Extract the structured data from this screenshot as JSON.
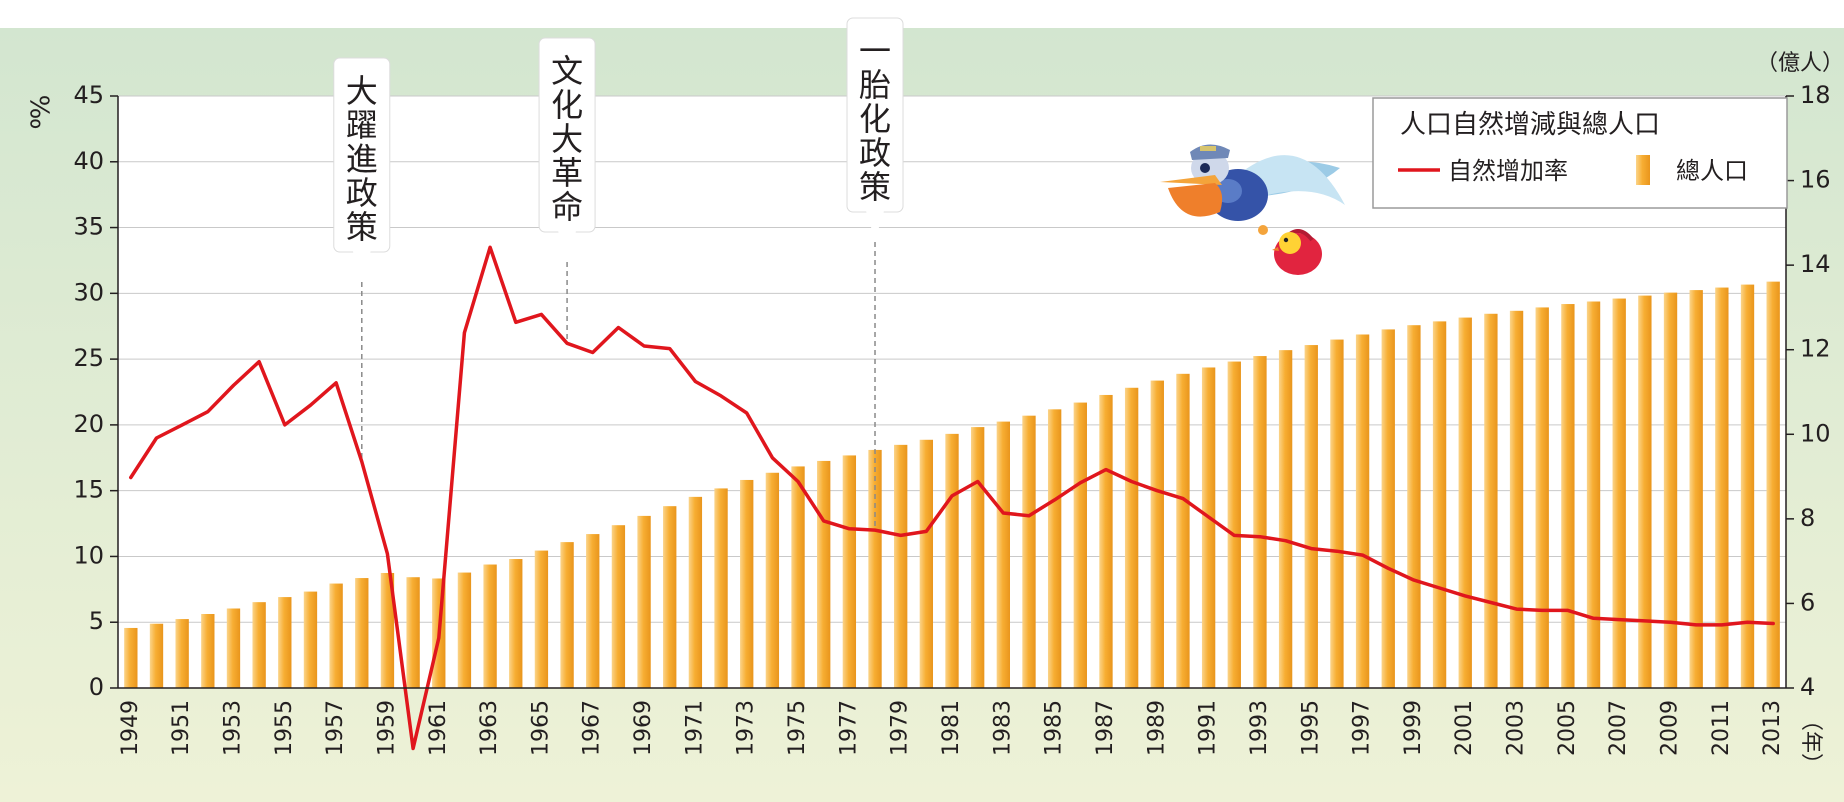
{
  "colors": {
    "band_top": "#d3e6d0",
    "band_bottom": "#eef2d7",
    "bar_fill": "#f7ae33",
    "line_color": "#e0161d",
    "grid": "#c9c9c9",
    "callout_line": "#8a8a8a"
  },
  "chart_data": {
    "type": "bar+line",
    "title": "人口自然增減與總人口",
    "left_axis": {
      "unit_label": "‰",
      "min": 0,
      "max": 45,
      "ticks": [
        0,
        5,
        10,
        15,
        20,
        25,
        30,
        35,
        40,
        45
      ]
    },
    "right_axis": {
      "unit_label": "（億人）",
      "min": 4,
      "max": 18,
      "ticks": [
        4,
        6,
        8,
        10,
        12,
        14,
        16,
        18
      ]
    },
    "x_axis": {
      "unit_label": "（年）"
    },
    "grid": true,
    "legend": {
      "position": "top-right",
      "title": "人口自然增減與總人口",
      "line_label": "自然增加率",
      "bar_label": "總人口"
    },
    "years": [
      1949,
      1950,
      1951,
      1952,
      1953,
      1954,
      1955,
      1956,
      1957,
      1958,
      1959,
      1960,
      1961,
      1962,
      1963,
      1964,
      1965,
      1966,
      1967,
      1968,
      1969,
      1970,
      1971,
      1972,
      1973,
      1974,
      1975,
      1976,
      1977,
      1978,
      1979,
      1980,
      1981,
      1982,
      1983,
      1984,
      1985,
      1986,
      1987,
      1988,
      1989,
      1990,
      1991,
      1992,
      1993,
      1994,
      1995,
      1996,
      1997,
      1998,
      1999,
      2000,
      2001,
      2002,
      2003,
      2004,
      2005,
      2006,
      2007,
      2008,
      2009,
      2010,
      2011,
      2012,
      2013
    ],
    "x_tick_labels": [
      "1949",
      "1951",
      "1953",
      "1955",
      "1957",
      "1959",
      "1961",
      "1963",
      "1965",
      "1967",
      "1969",
      "1971",
      "1973",
      "1975",
      "1977",
      "1979",
      "1981",
      "1983",
      "1985",
      "1987",
      "1989",
      "1991",
      "1993",
      "1995",
      "1997",
      "1999",
      "2001",
      "2003",
      "2005",
      "2007",
      "2009",
      "2011",
      "2013"
    ],
    "series": [
      {
        "name": "總人口",
        "type": "bar",
        "axis": "right",
        "values": [
          5.42,
          5.52,
          5.63,
          5.75,
          5.88,
          6.03,
          6.15,
          6.28,
          6.47,
          6.6,
          6.72,
          6.62,
          6.59,
          6.73,
          6.92,
          7.05,
          7.25,
          7.45,
          7.64,
          7.85,
          8.07,
          8.3,
          8.52,
          8.72,
          8.92,
          9.09,
          9.24,
          9.37,
          9.5,
          9.63,
          9.75,
          9.87,
          10.01,
          10.17,
          10.3,
          10.44,
          10.59,
          10.75,
          10.93,
          11.1,
          11.27,
          11.43,
          11.58,
          11.72,
          11.85,
          11.99,
          12.11,
          12.24,
          12.36,
          12.48,
          12.58,
          12.67,
          12.76,
          12.85,
          12.92,
          13.0,
          13.08,
          13.14,
          13.21,
          13.28,
          13.35,
          13.41,
          13.47,
          13.54,
          13.61
        ]
      },
      {
        "name": "自然增加率",
        "type": "line",
        "axis": "left",
        "values": [
          16.0,
          19.0,
          20.0,
          21.0,
          23.0,
          24.8,
          20.0,
          21.5,
          23.2,
          17.2,
          10.2,
          -4.6,
          3.8,
          27.0,
          33.5,
          27.8,
          28.4,
          26.2,
          25.5,
          27.4,
          26.0,
          25.8,
          23.3,
          22.2,
          20.9,
          17.5,
          15.7,
          12.7,
          12.1,
          12.0,
          11.6,
          11.9,
          14.6,
          15.7,
          13.3,
          13.1,
          14.3,
          15.6,
          16.6,
          15.7,
          15.0,
          14.4,
          13.0,
          11.6,
          11.5,
          11.2,
          10.6,
          10.4,
          10.1,
          9.1,
          8.2,
          7.6,
          7.0,
          6.5,
          6.0,
          5.9,
          5.9,
          5.3,
          5.2,
          5.1,
          5.0,
          4.8,
          4.8,
          5.0,
          4.9
        ]
      }
    ],
    "annotations": [
      {
        "label": "大躍進政策",
        "year": 1958
      },
      {
        "label": "文化大革命",
        "year": 1966
      },
      {
        "label": "一胎化政策",
        "year": 1978
      }
    ]
  }
}
